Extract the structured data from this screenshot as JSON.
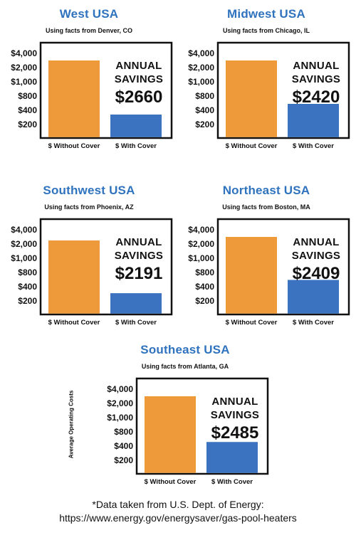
{
  "y_axis_label": "Average Operating Costs",
  "footnote": {
    "line1": "*Data taken from U.S. Dept. of Energy:",
    "line2": "https://www.energy.gov/energysaver/gas-pool-heaters"
  },
  "chart_data": [
    {
      "type": "bar",
      "title": "West USA",
      "subtitle": "Using facts from Denver, CO",
      "annual_label": "ANNUAL",
      "savings_label": "SAVINGS",
      "savings": "$2660",
      "categories": [
        "$ Without Cover",
        "$ With Cover"
      ],
      "values": [
        3000,
        340
      ],
      "colors": [
        "#ee9a3a",
        "#3b73c1"
      ],
      "y_tick_labels": [
        "$4,000",
        "$2,000",
        "$1,000",
        "$800",
        "$400",
        "$200"
      ]
    },
    {
      "type": "bar",
      "title": "Midwest USA",
      "subtitle": "Using facts from Chicago, IL",
      "annual_label": "ANNUAL",
      "savings_label": "SAVINGS",
      "savings": "$2420",
      "categories": [
        "$ Without Cover",
        "$ With Cover"
      ],
      "values": [
        3000,
        580
      ],
      "colors": [
        "#ee9a3a",
        "#3b73c1"
      ],
      "y_tick_labels": [
        "$4,000",
        "$2,000",
        "$1,000",
        "$800",
        "$400",
        "$200"
      ]
    },
    {
      "type": "bar",
      "title": "Southwest USA",
      "subtitle": "Using facts from Phoenix, AZ",
      "annual_label": "ANNUAL",
      "savings_label": "SAVINGS",
      "savings": "$2191",
      "categories": [
        "$ Without Cover",
        "$ With Cover"
      ],
      "values": [
        2500,
        309
      ],
      "colors": [
        "#ee9a3a",
        "#3b73c1"
      ],
      "y_tick_labels": [
        "$4,000",
        "$2,000",
        "$1,000",
        "$800",
        "$400",
        "$200"
      ]
    },
    {
      "type": "bar",
      "title": "Northeast USA",
      "subtitle": "Using facts from Boston, MA",
      "annual_label": "ANNUAL",
      "savings_label": "SAVINGS",
      "savings": "$2409",
      "categories": [
        "$ Without Cover",
        "$ With Cover"
      ],
      "values": [
        3000,
        591
      ],
      "colors": [
        "#ee9a3a",
        "#3b73c1"
      ],
      "y_tick_labels": [
        "$4,000",
        "$2,000",
        "$1,000",
        "$800",
        "$400",
        "$200"
      ]
    },
    {
      "type": "bar",
      "title": "Southeast USA",
      "subtitle": "Using facts from Atlanta, GA",
      "annual_label": "ANNUAL",
      "savings_label": "SAVINGS",
      "savings": "$2485",
      "categories": [
        "$ Without Cover",
        "$ With Cover"
      ],
      "values": [
        3000,
        515
      ],
      "colors": [
        "#ee9a3a",
        "#3b73c1"
      ],
      "y_tick_labels": [
        "$4,000",
        "$2,000",
        "$1,000",
        "$800",
        "$400",
        "$200"
      ]
    }
  ]
}
